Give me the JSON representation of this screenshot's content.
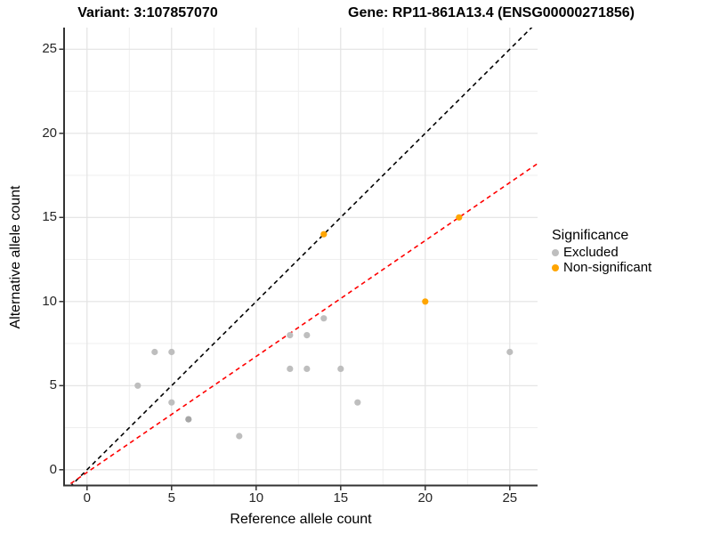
{
  "chart_data": {
    "type": "scatter",
    "titles": {
      "variant": "Variant: 3:107857070",
      "gene": "Gene: RP11-861A13.4 (ENSG00000271856)"
    },
    "xlabel": "Reference allele count",
    "ylabel": "Alternative allele count",
    "x_ticks": [
      0,
      5,
      10,
      15,
      20,
      25
    ],
    "y_ticks": [
      0,
      5,
      10,
      15,
      20,
      25
    ],
    "minor_ticks": [
      2.5,
      7.5,
      12.5,
      17.5,
      22.5
    ],
    "xlim": [
      -1.36,
      26.6
    ],
    "ylim": [
      -0.94,
      26.3
    ],
    "grid": true,
    "legend": {
      "title": "Significance",
      "position": "right",
      "items": [
        {
          "label": "Excluded",
          "color": "#bebebe"
        },
        {
          "label": "Non-significant",
          "color": "#ffa500"
        }
      ]
    },
    "series": [
      {
        "name": "Excluded",
        "color": "#bebebe",
        "points": [
          [
            3,
            5
          ],
          [
            4,
            7
          ],
          [
            5,
            7
          ],
          [
            5,
            4
          ],
          [
            9,
            2
          ],
          [
            12,
            6
          ],
          [
            12,
            8
          ],
          [
            13,
            6
          ],
          [
            13,
            8
          ],
          [
            14,
            9
          ],
          [
            15,
            6
          ],
          [
            16,
            4
          ],
          [
            25,
            7
          ]
        ]
      },
      {
        "name": "Excluded (overlapping points, darker)",
        "color": "#a6a6a6",
        "points": [
          [
            6,
            3
          ]
        ]
      },
      {
        "name": "Non-significant",
        "color": "#ffa500",
        "points": [
          [
            14,
            14
          ],
          [
            20,
            10
          ],
          [
            22,
            15
          ]
        ]
      }
    ],
    "lines": [
      {
        "name": "identity-line",
        "slope": 1,
        "intercept": 0,
        "color": "#000000",
        "dash": "5,4"
      },
      {
        "name": "regression-line",
        "slope": 0.689,
        "intercept": -0.155,
        "color": "#ff0000",
        "dash": "5,4"
      }
    ],
    "colors": {
      "grid_major": "#e3e3e3",
      "grid_minor": "#efefef",
      "axis_line": "#333333",
      "tick_mark": "#333333"
    }
  }
}
